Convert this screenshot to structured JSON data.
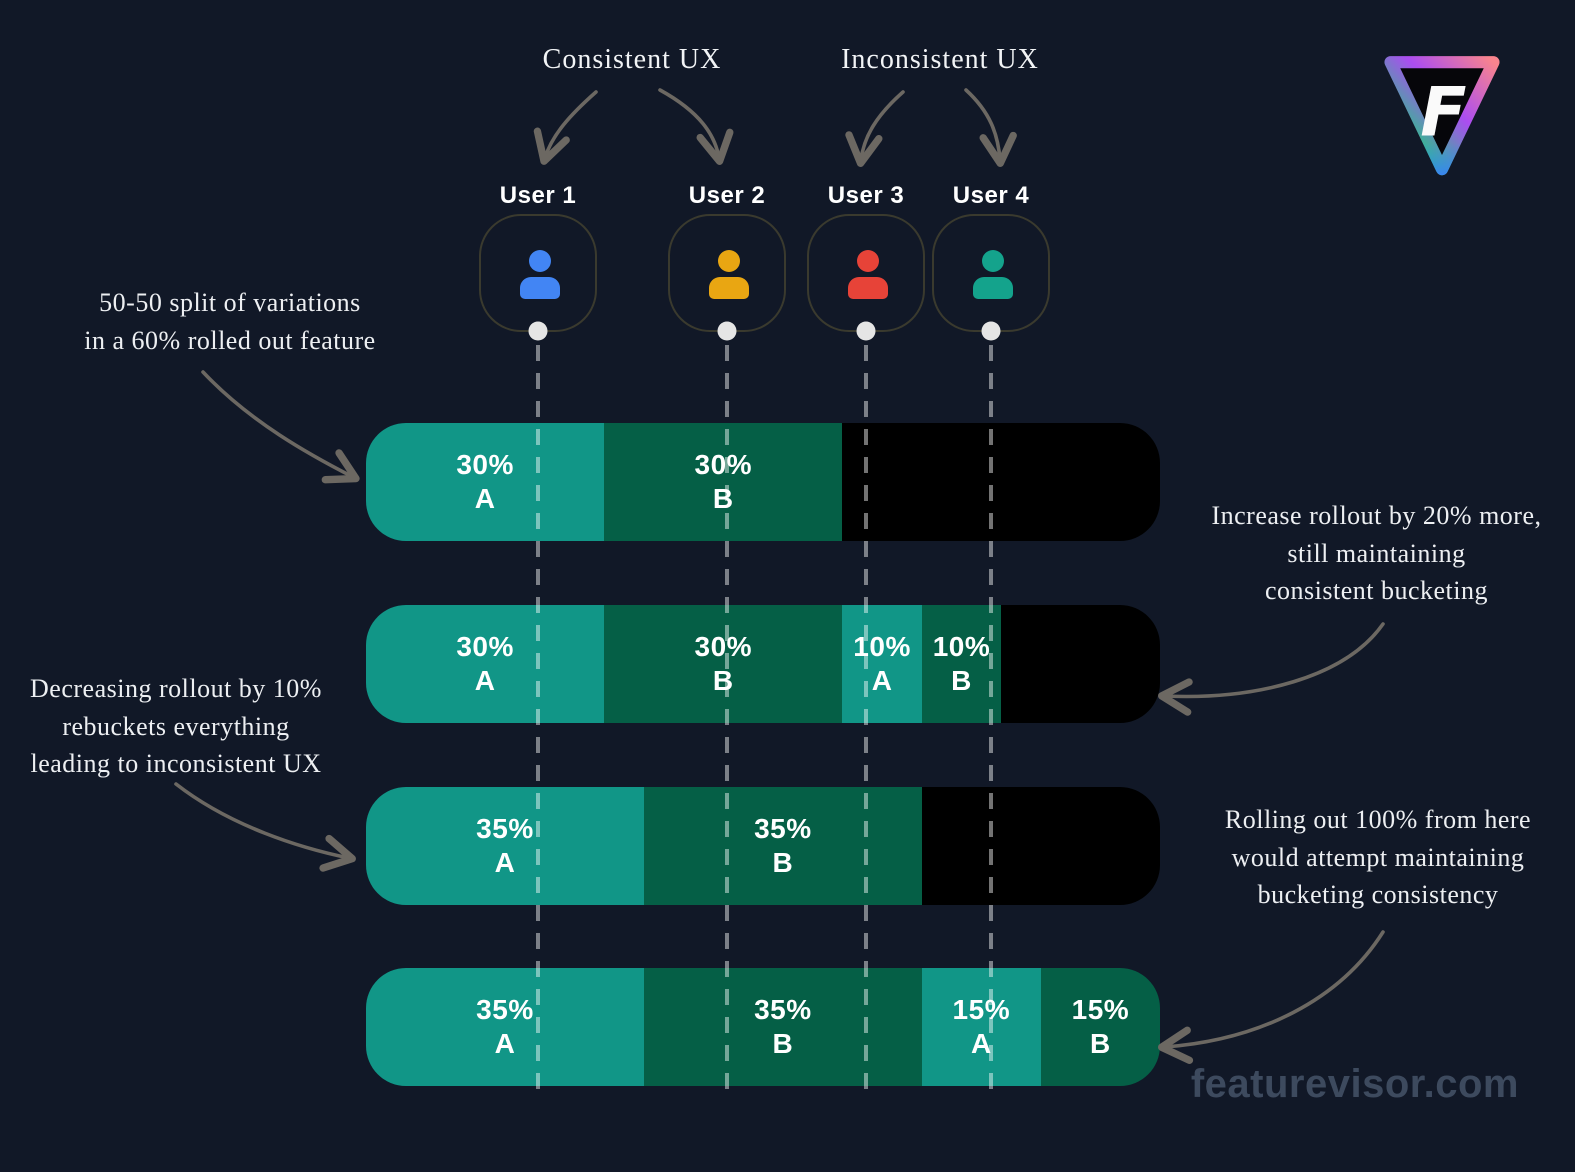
{
  "page": {
    "background": "#111827",
    "watermark": "featurevisor.com"
  },
  "logo": {
    "name": "Featurevisor",
    "letter": "F"
  },
  "header": {
    "consistent_label": "Consistent UX",
    "inconsistent_label": "Inconsistent UX"
  },
  "users": [
    {
      "label": "User 1",
      "color": "#4285F4",
      "group": "consistent"
    },
    {
      "label": "User 2",
      "color": "#E9A612",
      "group": "consistent"
    },
    {
      "label": "User 3",
      "color": "#E74338",
      "group": "inconsistent"
    },
    {
      "label": "User 4",
      "color": "#14A38C",
      "group": "inconsistent"
    }
  ],
  "colors": {
    "variation_a": "#119687",
    "variation_b": "#055F46",
    "unrolled": "#000000",
    "dot": "#E5E5E5",
    "arrow": "#6C6862"
  },
  "annotations": {
    "left_top": [
      "50-50 split of variations",
      "in a 60% rolled out feature"
    ],
    "left_bottom": [
      "Decreasing rollout by 10%",
      "rebuckets everything",
      "leading to inconsistent UX"
    ],
    "right_top": [
      "Increase rollout by 20% more,",
      "still maintaining",
      "consistent bucketing"
    ],
    "right_bottom": [
      "Rolling out 100% from here",
      "would attempt maintaining",
      "bucketing consistency"
    ]
  },
  "chart_data": {
    "type": "bar",
    "bars": [
      {
        "segments": [
          {
            "label": "30%",
            "variation": "A",
            "pct": 30,
            "kind": "a"
          },
          {
            "label": "30%",
            "variation": "B",
            "pct": 30,
            "kind": "b"
          },
          {
            "pct": 40,
            "kind": "off"
          }
        ]
      },
      {
        "segments": [
          {
            "label": "30%",
            "variation": "A",
            "pct": 30,
            "kind": "a"
          },
          {
            "label": "30%",
            "variation": "B",
            "pct": 30,
            "kind": "b"
          },
          {
            "label": "10%",
            "variation": "A",
            "pct": 10,
            "kind": "a"
          },
          {
            "label": "10%",
            "variation": "B",
            "pct": 10,
            "kind": "b"
          },
          {
            "pct": 20,
            "kind": "off"
          }
        ]
      },
      {
        "segments": [
          {
            "label": "35%",
            "variation": "A",
            "pct": 35,
            "kind": "a"
          },
          {
            "label": "35%",
            "variation": "B",
            "pct": 35,
            "kind": "b"
          },
          {
            "pct": 30,
            "kind": "off"
          }
        ]
      },
      {
        "segments": [
          {
            "label": "35%",
            "variation": "A",
            "pct": 35,
            "kind": "a"
          },
          {
            "label": "35%",
            "variation": "B",
            "pct": 35,
            "kind": "b"
          },
          {
            "label": "15%",
            "variation": "A",
            "pct": 15,
            "kind": "a"
          },
          {
            "label": "15%",
            "variation": "B",
            "pct": 15,
            "kind": "b"
          }
        ]
      }
    ]
  }
}
